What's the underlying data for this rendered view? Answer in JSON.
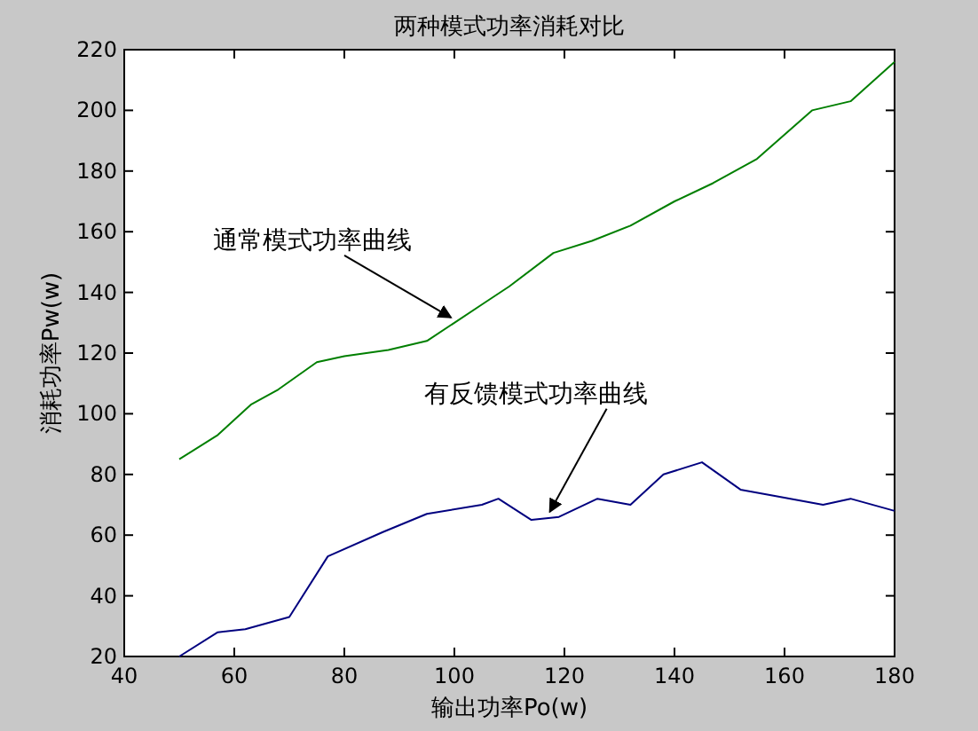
{
  "chart_data": {
    "type": "line",
    "title": "两种模式功率消耗对比",
    "xlabel": "输出功率Po(w)",
    "ylabel": "消耗功率Pw(w)",
    "xlim": [
      40,
      180
    ],
    "xticks": [
      40,
      60,
      80,
      100,
      120,
      140,
      160,
      180
    ],
    "ylim": [
      20,
      220
    ],
    "yticks": [
      20,
      40,
      60,
      80,
      100,
      120,
      140,
      160,
      180,
      200,
      220
    ],
    "grid": false,
    "line_style": "solid",
    "series": [
      {
        "color": "#007f00",
        "x": [
          50,
          57,
          63,
          68,
          75,
          80,
          88,
          95,
          100,
          105,
          110,
          118,
          125,
          132,
          140,
          147,
          155,
          165,
          172,
          180
        ],
        "values": [
          85,
          93,
          103,
          108,
          117,
          119,
          121,
          124,
          130,
          136,
          142,
          153,
          157,
          162,
          170,
          176,
          184,
          200,
          203,
          216
        ]
      },
      {
        "color": "#00007f",
        "x": [
          50,
          57,
          62,
          70,
          77,
          87,
          95,
          105,
          108,
          114,
          119,
          126,
          132,
          138,
          145,
          152,
          158,
          167,
          172,
          180
        ],
        "values": [
          20,
          28,
          29,
          33,
          53,
          61,
          67,
          70,
          72,
          65,
          66,
          72,
          70,
          80,
          84,
          75,
          73,
          70,
          72,
          68
        ]
      }
    ],
    "annotations": [
      {
        "text": "通常模式功率曲线",
        "x": 100,
        "y": 130
      },
      {
        "text": "有反馈模式功率曲线",
        "x": 118,
        "y": 66
      }
    ]
  }
}
